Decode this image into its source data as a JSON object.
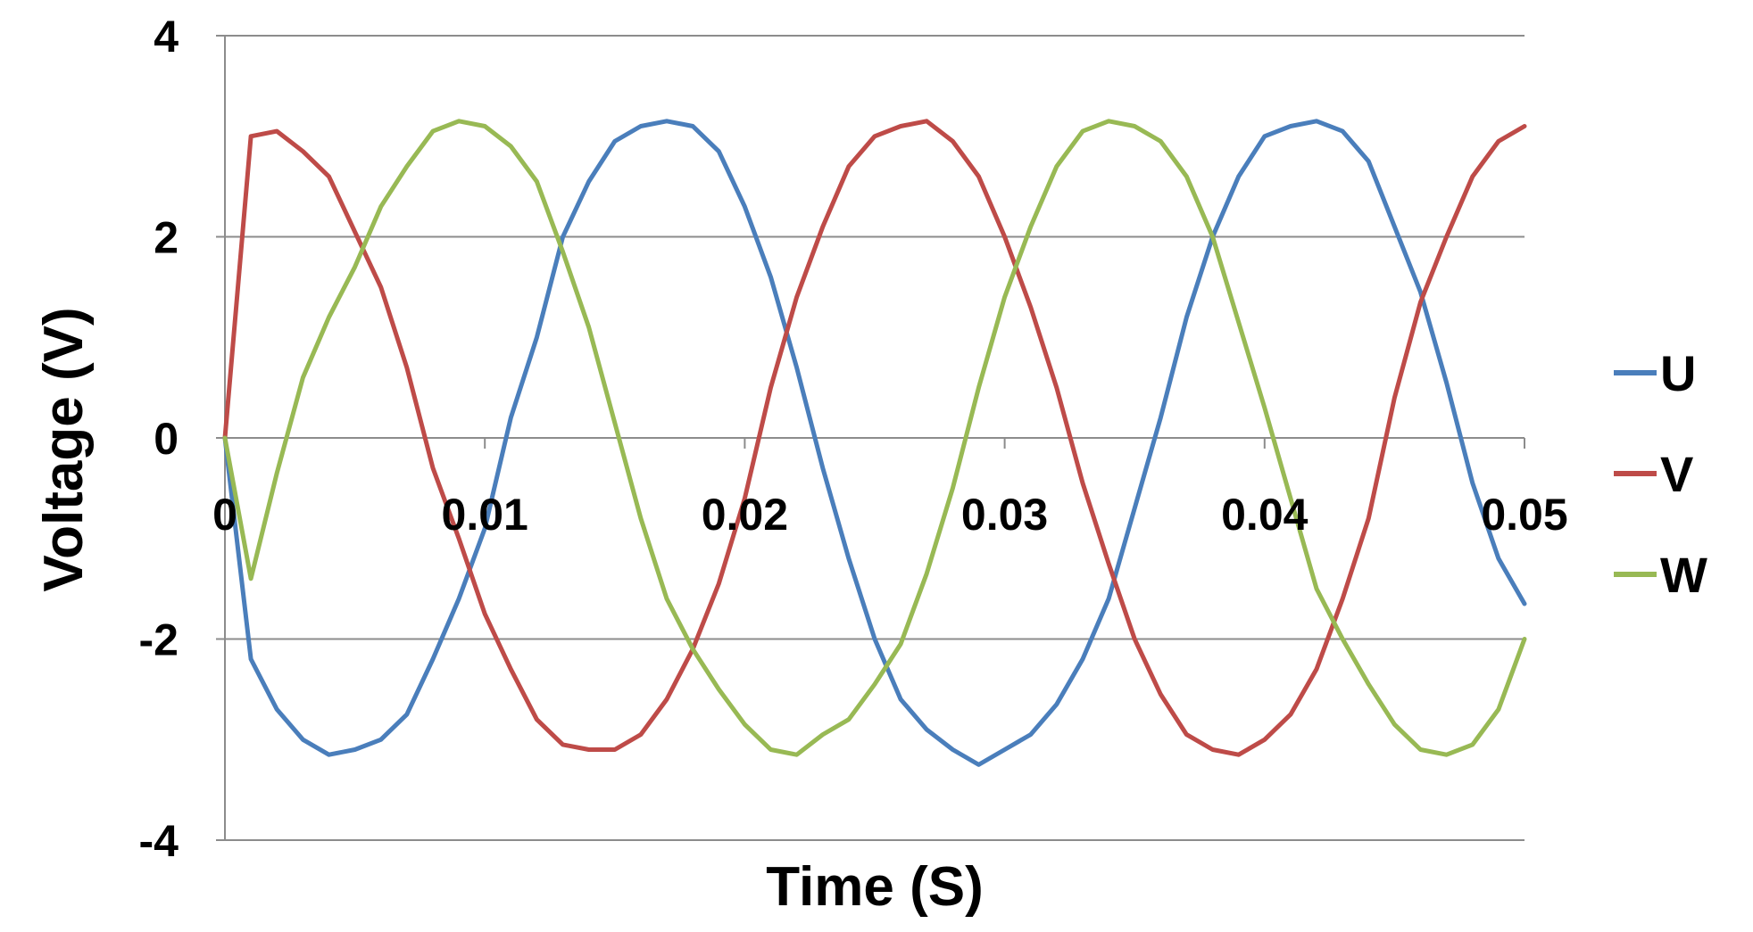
{
  "chart_data": {
    "type": "line",
    "title": "",
    "xlabel": "Time (S)",
    "ylabel": "Voltage (V)",
    "xlim": [
      0,
      0.05
    ],
    "ylim": [
      -4,
      4
    ],
    "x_ticks": [
      0,
      0.01,
      0.02,
      0.03,
      0.04,
      0.05
    ],
    "x_tick_labels": [
      "0",
      "0.01",
      "0.02",
      "0.03",
      "0.04",
      "0.05"
    ],
    "y_ticks": [
      -4,
      -2,
      0,
      2,
      4
    ],
    "y_tick_labels": [
      "-4",
      "-2",
      "0",
      "2",
      "4"
    ],
    "grid": "horizontal",
    "legend_position": "right",
    "x": [
      0,
      0.001,
      0.002,
      0.003,
      0.004,
      0.005,
      0.006,
      0.007,
      0.008,
      0.009,
      0.01,
      0.011,
      0.012,
      0.013,
      0.014,
      0.015,
      0.016,
      0.017,
      0.018,
      0.019,
      0.02,
      0.021,
      0.022,
      0.023,
      0.024,
      0.025,
      0.026,
      0.027,
      0.028,
      0.029,
      0.03,
      0.031,
      0.032,
      0.033,
      0.034,
      0.035,
      0.036,
      0.037,
      0.038,
      0.039,
      0.04,
      0.041,
      0.042,
      0.043,
      0.044,
      0.045,
      0.046,
      0.047,
      0.048,
      0.049,
      0.05
    ],
    "series": [
      {
        "name": "U",
        "color": "#4a7ebb",
        "values": [
          0,
          -2.2,
          -2.7,
          -3.0,
          -3.15,
          -3.1,
          -3.0,
          -2.75,
          -2.2,
          -1.6,
          -0.9,
          0.2,
          1.0,
          2.0,
          2.55,
          2.95,
          3.1,
          3.15,
          3.1,
          2.85,
          2.3,
          1.6,
          0.7,
          -0.3,
          -1.2,
          -2.0,
          -2.6,
          -2.9,
          -3.1,
          -3.25,
          -3.1,
          -2.95,
          -2.65,
          -2.2,
          -1.6,
          -0.7,
          0.2,
          1.2,
          2.0,
          2.6,
          3.0,
          3.1,
          3.15,
          3.05,
          2.75,
          2.1,
          1.45,
          0.55,
          -0.45,
          -1.2,
          -1.65
        ]
      },
      {
        "name": "V",
        "color": "#be4b48",
        "values": [
          0,
          3.0,
          3.05,
          2.85,
          2.6,
          2.05,
          1.5,
          0.7,
          -0.3,
          -1.0,
          -1.75,
          -2.3,
          -2.8,
          -3.05,
          -3.1,
          -3.1,
          -2.95,
          -2.6,
          -2.1,
          -1.45,
          -0.6,
          0.5,
          1.4,
          2.1,
          2.7,
          3.0,
          3.1,
          3.15,
          2.95,
          2.6,
          2.0,
          1.3,
          0.5,
          -0.45,
          -1.25,
          -2.0,
          -2.55,
          -2.95,
          -3.1,
          -3.15,
          -3.0,
          -2.75,
          -2.3,
          -1.6,
          -0.8,
          0.4,
          1.35,
          2.0,
          2.6,
          2.95,
          3.1
        ]
      },
      {
        "name": "W",
        "color": "#98b954",
        "values": [
          0,
          -1.4,
          -0.35,
          0.6,
          1.2,
          1.7,
          2.3,
          2.7,
          3.05,
          3.15,
          3.1,
          2.9,
          2.55,
          1.85,
          1.1,
          0.15,
          -0.8,
          -1.6,
          -2.1,
          -2.5,
          -2.85,
          -3.1,
          -3.15,
          -2.95,
          -2.8,
          -2.45,
          -2.05,
          -1.35,
          -0.5,
          0.5,
          1.4,
          2.1,
          2.7,
          3.05,
          3.15,
          3.1,
          2.95,
          2.6,
          2.0,
          1.15,
          0.3,
          -0.6,
          -1.5,
          -2.0,
          -2.45,
          -2.85,
          -3.1,
          -3.15,
          -3.05,
          -2.7,
          -2.0
        ]
      }
    ]
  }
}
